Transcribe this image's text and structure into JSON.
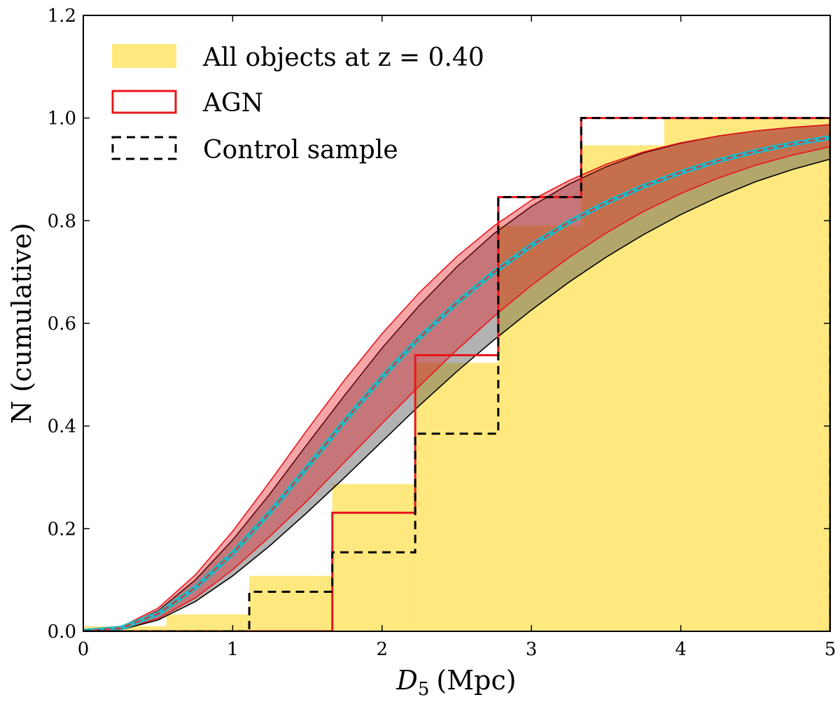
{
  "chart_data": {
    "type": "line",
    "title": "",
    "xlabel_symbol": "D",
    "xlabel_subscript": "5",
    "xlabel_unit": "(Mpc)",
    "ylabel": "N (cumulative)",
    "xlim": [
      0,
      5
    ],
    "ylim": [
      0,
      1.2
    ],
    "x_ticks": [
      0,
      1,
      2,
      3,
      4,
      5
    ],
    "x_tick_labels": [
      "0",
      "1",
      "2",
      "3",
      "4",
      "5"
    ],
    "y_ticks": [
      0,
      0.2,
      0.4,
      0.6,
      0.8,
      1.0,
      1.2
    ],
    "y_tick_labels": [
      "0.0",
      "0.2",
      "0.4",
      "0.6",
      "0.8",
      "1.0",
      "1.2"
    ],
    "grid": false,
    "legend_position": "top-left",
    "legend": [
      {
        "label": "All objects at z = 0.40",
        "style": "filled",
        "color": "#ffe97f"
      },
      {
        "label": "AGN",
        "style": "outline",
        "color": "#e8151b"
      },
      {
        "label": "Control sample",
        "style": "dashed",
        "color": "#000000"
      }
    ],
    "colors": {
      "all_fill": "#ffe97f",
      "agn_line": "#e8151b",
      "agn_band": "#e8151b",
      "control_line": "#000000",
      "control_band": "#555555",
      "model_line": "#22b8c4",
      "model_dash": "#d23a3a"
    },
    "series": [
      {
        "name": "All objects at z = 0.40",
        "kind": "step-fill",
        "edges": [
          0,
          0.556,
          1.111,
          1.667,
          2.222,
          2.778,
          3.333,
          3.889,
          5.0
        ],
        "values": [
          0.01,
          0.033,
          0.108,
          0.287,
          0.523,
          0.79,
          0.947,
          1.0
        ]
      },
      {
        "name": "AGN",
        "kind": "step",
        "edges": [
          0,
          1.667,
          2.222,
          2.778,
          3.333,
          5.0
        ],
        "values": [
          0.0,
          0.231,
          0.538,
          0.846,
          1.0
        ]
      },
      {
        "name": "Control sample",
        "kind": "step-dashed",
        "edges": [
          0,
          1.111,
          1.667,
          2.222,
          2.778,
          3.333,
          5.0
        ],
        "values": [
          0.0,
          0.077,
          0.154,
          0.385,
          0.846,
          1.0
        ]
      },
      {
        "name": "AGN band",
        "kind": "band",
        "x": [
          0,
          0.25,
          0.5,
          0.75,
          1.0,
          1.25,
          1.5,
          1.75,
          2.0,
          2.25,
          2.5,
          2.75,
          3.0,
          3.25,
          3.5,
          3.75,
          4.0,
          4.25,
          4.5,
          4.75,
          5.0
        ],
        "lower": [
          0,
          0.004,
          0.025,
          0.065,
          0.12,
          0.185,
          0.255,
          0.33,
          0.405,
          0.478,
          0.548,
          0.614,
          0.674,
          0.728,
          0.776,
          0.818,
          0.853,
          0.883,
          0.908,
          0.928,
          0.944
        ],
        "upper": [
          0,
          0.008,
          0.045,
          0.11,
          0.195,
          0.292,
          0.393,
          0.49,
          0.58,
          0.66,
          0.73,
          0.79,
          0.84,
          0.878,
          0.91,
          0.934,
          0.952,
          0.965,
          0.975,
          0.982,
          0.987
        ]
      },
      {
        "name": "Control band",
        "kind": "band",
        "x": [
          0,
          0.25,
          0.5,
          0.75,
          1.0,
          1.25,
          1.5,
          1.75,
          2.0,
          2.25,
          2.5,
          2.75,
          3.0,
          3.25,
          3.5,
          3.75,
          4.0,
          4.25,
          4.5,
          4.75,
          5.0
        ],
        "lower": [
          0,
          0.003,
          0.022,
          0.058,
          0.108,
          0.167,
          0.232,
          0.3,
          0.37,
          0.44,
          0.506,
          0.568,
          0.626,
          0.68,
          0.729,
          0.773,
          0.812,
          0.846,
          0.876,
          0.9,
          0.92
        ],
        "upper": [
          0,
          0.007,
          0.04,
          0.1,
          0.178,
          0.268,
          0.365,
          0.46,
          0.552,
          0.635,
          0.71,
          0.775,
          0.828,
          0.871,
          0.905,
          0.932,
          0.951,
          0.965,
          0.975,
          0.982,
          0.987
        ]
      },
      {
        "name": "Model",
        "kind": "curve",
        "x": [
          0,
          0.25,
          0.5,
          0.75,
          1.0,
          1.25,
          1.5,
          1.75,
          2.0,
          2.25,
          2.5,
          2.75,
          3.0,
          3.25,
          3.5,
          3.75,
          4.0,
          4.25,
          4.5,
          4.75,
          5.0
        ],
        "values": [
          0,
          0.006,
          0.034,
          0.085,
          0.152,
          0.232,
          0.32,
          0.41,
          0.495,
          0.572,
          0.64,
          0.7,
          0.752,
          0.797,
          0.835,
          0.867,
          0.894,
          0.917,
          0.935,
          0.95,
          0.962
        ]
      }
    ]
  }
}
